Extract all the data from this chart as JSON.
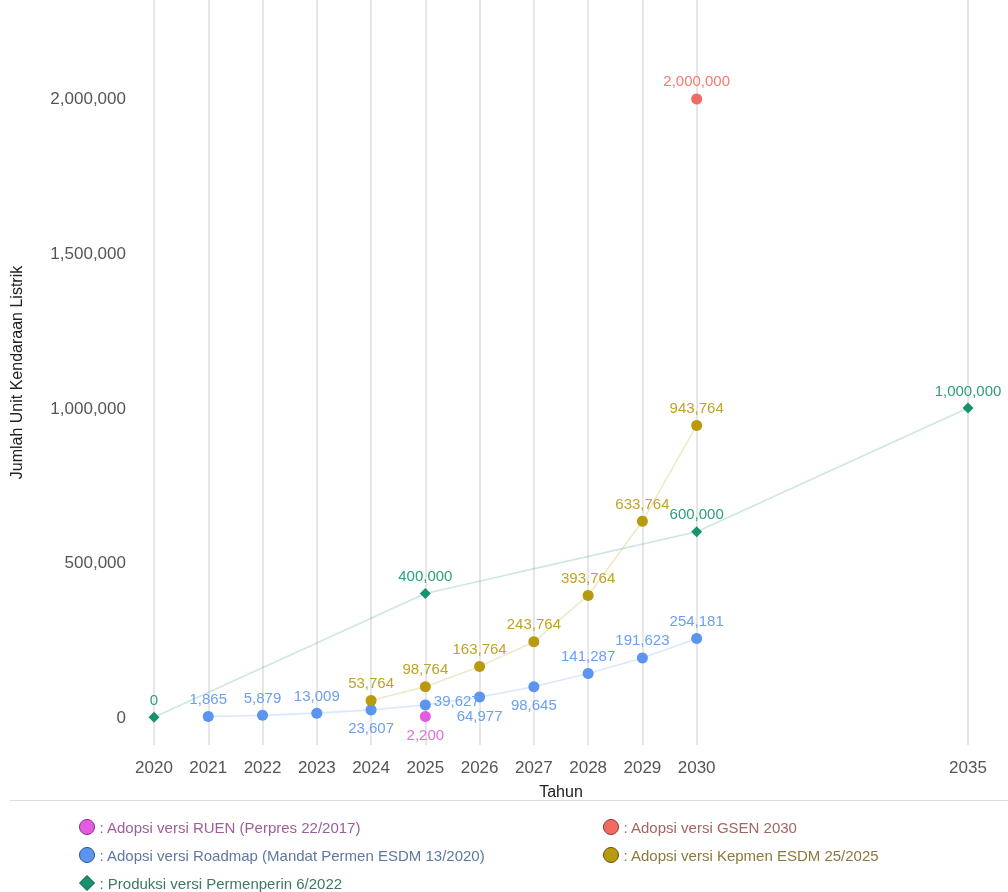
{
  "chart_data": {
    "type": "line",
    "xlabel": "Tahun",
    "ylabel": "Jumlah Unit Kendaraan Listrik",
    "xlim": [
      2020,
      2035
    ],
    "xticks": [
      2020,
      2021,
      2022,
      2023,
      2024,
      2025,
      2026,
      2027,
      2028,
      2029,
      2030,
      2035
    ],
    "ylim": [
      -90000,
      2320000
    ],
    "yticks": [
      0,
      {
        "value": 500000,
        "label": "500,000"
      },
      {
        "value": 1000000,
        "label": "1,000,000"
      },
      {
        "value": 1500000,
        "label": "1,500,000"
      },
      {
        "value": 2000000,
        "label": "2,000,000"
      }
    ],
    "grid": "x",
    "legend": "bottom",
    "marker": "circle",
    "line_style": "solid",
    "series": [
      {
        "name": ": Adopsi versi RUEN (Perpres 22/2017)",
        "color": "#e35be0",
        "x": [
          2025
        ],
        "values": [
          2200
        ],
        "value_labels": [
          "2,200"
        ]
      },
      {
        "name": ": Adopsi versi GSEN 2030",
        "color": "#f26b63",
        "x": [
          2030
        ],
        "values": [
          2000000
        ],
        "value_labels": [
          "2,000,000"
        ]
      },
      {
        "name": ": Adopsi versi Roadmap (Mandat Permen ESDM 13/2020)",
        "color": "#5b95ef",
        "x": [
          2021,
          2022,
          2023,
          2024,
          2025,
          2026,
          2027,
          2028,
          2029,
          2030
        ],
        "values": [
          1865,
          5879,
          13009,
          23607,
          39627,
          64977,
          98645,
          141287,
          191623,
          254181
        ],
        "value_labels": [
          "1,865",
          "5,879",
          "13,009",
          "23,607",
          "39,627",
          "64,977",
          "98,645",
          "141,287",
          "191,623",
          "254,181"
        ]
      },
      {
        "name": ": Adopsi versi Kepmen ESDM 25/2025",
        "color": "#b8990f",
        "x": [
          2024,
          2025,
          2026,
          2027,
          2028,
          2029,
          2030
        ],
        "values": [
          53764,
          98764,
          163764,
          243764,
          393764,
          633764,
          943764
        ],
        "value_labels": [
          "53,764",
          "98,764",
          "163,764",
          "243,764",
          "393,764",
          "633,764",
          "943,764"
        ]
      },
      {
        "name": ": Produksi versi Permenperin 6/2022",
        "color": "#16936e",
        "marker": "diamond",
        "x": [
          2020,
          2025,
          2030,
          2035
        ],
        "values": [
          0,
          400000,
          600000,
          1000000
        ],
        "value_labels": [
          "0",
          "400,000",
          "600,000",
          "1,000,000"
        ]
      }
    ]
  }
}
